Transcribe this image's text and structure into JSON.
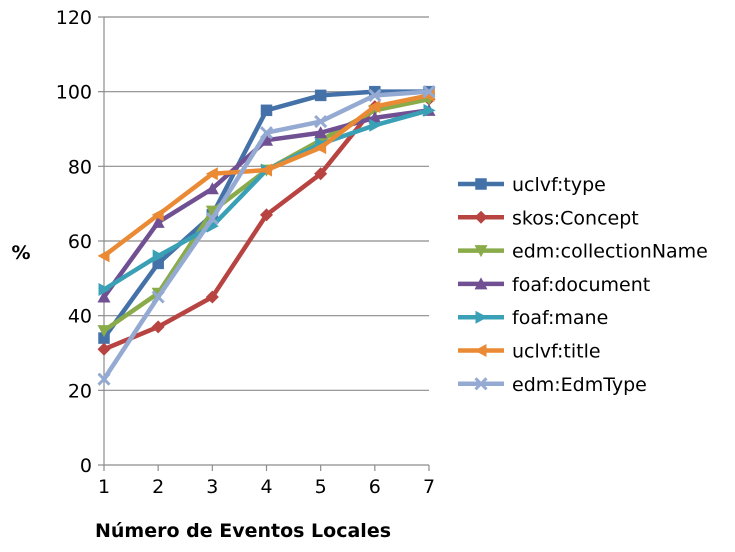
{
  "chart_data": {
    "type": "line",
    "xlabel": "Número de Eventos Locales",
    "ylabel": "%",
    "x": [
      1,
      2,
      3,
      4,
      5,
      6,
      7
    ],
    "ylim": [
      0,
      120
    ],
    "yticks": [
      0,
      20,
      40,
      60,
      80,
      100,
      120
    ],
    "grid": "horizontal",
    "legend_position": "right",
    "series": [
      {
        "name": "uclvf:type",
        "color": "#4472a8",
        "marker": "square",
        "values": [
          34,
          54,
          67,
          95,
          99,
          100,
          100
        ]
      },
      {
        "name": "skos:Concept",
        "color": "#b84442",
        "marker": "diamond",
        "values": [
          31,
          37,
          45,
          67,
          78,
          96,
          98
        ]
      },
      {
        "name": "edm:collectionName",
        "color": "#8aab4a",
        "marker": "triangle-down",
        "values": [
          36,
          46,
          68,
          79,
          87,
          95,
          98
        ]
      },
      {
        "name": "foaf:document",
        "color": "#705092",
        "marker": "triangle-up",
        "values": [
          45,
          65,
          74,
          87,
          89,
          93,
          95
        ]
      },
      {
        "name": "foaf:mane",
        "color": "#3aa0b5",
        "marker": "triangle-right",
        "values": [
          47,
          56,
          64,
          79,
          86,
          91,
          95
        ]
      },
      {
        "name": "uclvf:title",
        "color": "#ea8a35",
        "marker": "triangle-left",
        "values": [
          56,
          67,
          78,
          79,
          85,
          96,
          99
        ]
      },
      {
        "name": "edm:EdmType",
        "color": "#94aad3",
        "marker": "x",
        "values": [
          23,
          45,
          66,
          89,
          92,
          99,
          100
        ]
      }
    ]
  }
}
